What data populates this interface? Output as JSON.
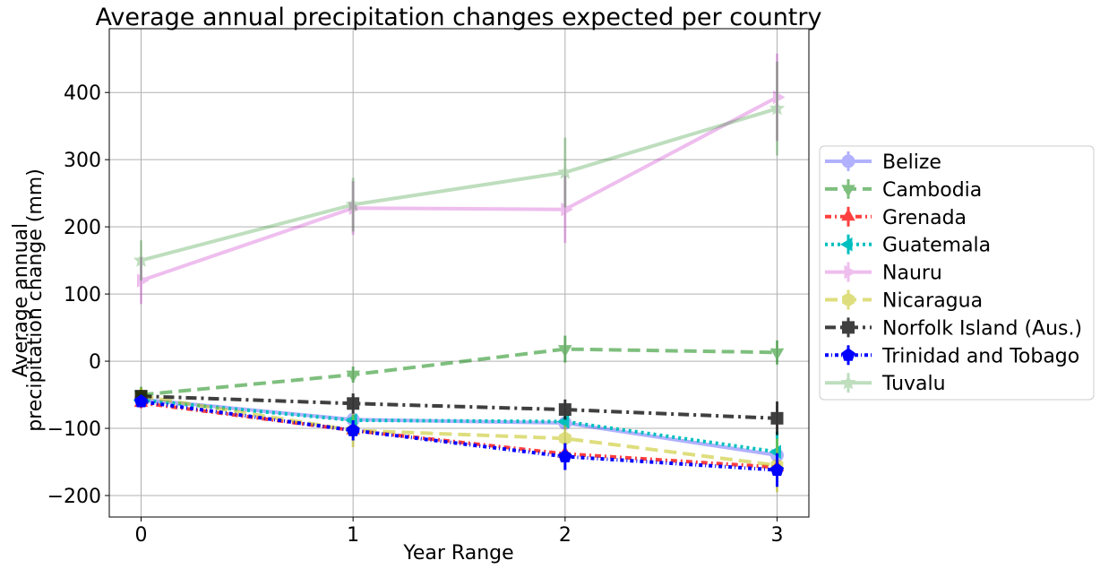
{
  "chart_data": {
    "type": "line",
    "title": "Average annual precipitation changes expected per country",
    "xlabel": "Year Range",
    "ylabel_lines": [
      "Average annual",
      "precipitation change (mm)"
    ],
    "x": [
      0,
      1,
      2,
      3
    ],
    "xticks": [
      0,
      1,
      2,
      3
    ],
    "xlim": [
      -0.15,
      3.15
    ],
    "yticks": [
      -200,
      -100,
      0,
      100,
      200,
      300,
      400
    ],
    "ytick_labels": [
      "−200",
      "−100",
      "0",
      "100",
      "200",
      "300",
      "400"
    ],
    "ylim": [
      -232,
      495
    ],
    "grid": true,
    "legend_position": "right-outside",
    "series": [
      {
        "name": "Belize",
        "values": [
          -57,
          -87,
          -92,
          -140
        ],
        "err": [
          8,
          8,
          8,
          8
        ],
        "color": "#0000ff",
        "alpha": 0.3,
        "dash": "",
        "marker": "circle"
      },
      {
        "name": "Cambodia",
        "values": [
          -50,
          -20,
          18,
          13
        ],
        "err": [
          12,
          12,
          20,
          18
        ],
        "color": "#008000",
        "alpha": 0.5,
        "dash": "14 7",
        "marker": "triangle-down"
      },
      {
        "name": "Grenada",
        "values": [
          -62,
          -103,
          -138,
          -158
        ],
        "err": [
          8,
          10,
          12,
          12
        ],
        "color": "#ff0000",
        "alpha": 0.75,
        "dash": "7 4 2 4",
        "marker": "triangle-up"
      },
      {
        "name": "Guatemala",
        "values": [
          -58,
          -88,
          -90,
          -135
        ],
        "err": [
          8,
          8,
          8,
          30
        ],
        "color": "#00bfbf",
        "alpha": 1,
        "dash": "3 4",
        "marker": "triangle-left"
      },
      {
        "name": "Nauru",
        "values": [
          120,
          228,
          226,
          393
        ],
        "err": [
          35,
          40,
          50,
          65
        ],
        "color": "#bf00bf",
        "alpha": 0.25,
        "dash": "",
        "marker": "triangle-right"
      },
      {
        "name": "Nicaragua",
        "values": [
          -52,
          -103,
          -115,
          -155
        ],
        "err": [
          12,
          25,
          20,
          40
        ],
        "color": "#bfbf00",
        "alpha": 0.5,
        "dash": "14 7",
        "marker": "hexagon"
      },
      {
        "name": "Norfolk Island (Aus.)",
        "values": [
          -52,
          -63,
          -72,
          -85
        ],
        "err": [
          8,
          15,
          15,
          25
        ],
        "color": "#000000",
        "alpha": 0.75,
        "dash": "12 5 3 5",
        "marker": "square"
      },
      {
        "name": "Trinidad and Tobago",
        "values": [
          -60,
          -103,
          -142,
          -162
        ],
        "err": [
          8,
          15,
          20,
          25
        ],
        "color": "#0000ff",
        "alpha": 1,
        "dash": "4 3 1 3",
        "marker": "pentagon"
      },
      {
        "name": "Tuvalu",
        "values": [
          150,
          233,
          281,
          376
        ],
        "err": [
          30,
          40,
          52,
          70
        ],
        "color": "#008000",
        "alpha": 0.25,
        "dash": "",
        "marker": "star"
      }
    ]
  }
}
